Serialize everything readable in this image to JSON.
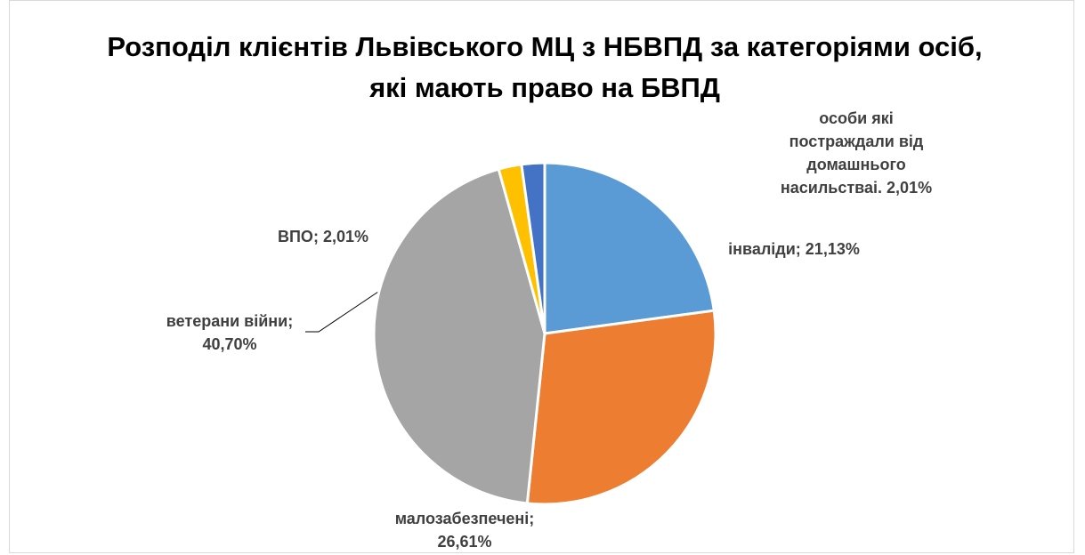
{
  "chart_data": {
    "type": "pie",
    "title": "Розподіл клієнтів Львівського МЦ з НБВПД за категоріями осіб, які мають право на БВПД",
    "categories": [
      "інваліди;",
      "малозабезпечені;",
      "ветерани війни;",
      "ВПО;",
      "особи які постраждали від домашнього насильстваі."
    ],
    "values": [
      21.13,
      26.61,
      40.7,
      2.01,
      2.01
    ],
    "value_labels": [
      "21,13%",
      "26,61%",
      "40,70%",
      "2,01%",
      "2,01%"
    ],
    "colors": [
      "#5b9bd5",
      "#ed7d31",
      "#a5a5a5",
      "#ffc000",
      "#4472c4"
    ]
  }
}
